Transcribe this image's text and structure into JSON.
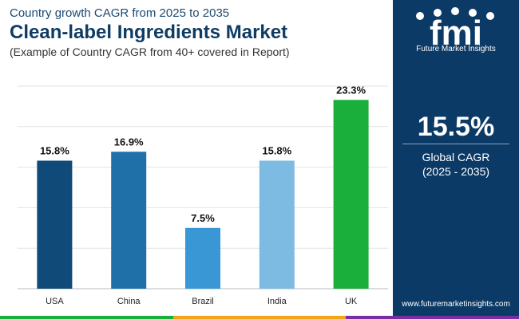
{
  "header": {
    "subtitle_top": "Country growth CAGR from 2025 to 2035",
    "title": "Clean-label Ingredients Market",
    "subtitle_bottom": "(Example of Country CAGR from 40+ covered in Report)"
  },
  "chart_data": {
    "type": "bar",
    "categories": [
      "USA",
      "China",
      "Brazil",
      "India",
      "UK"
    ],
    "values": [
      15.8,
      16.9,
      7.5,
      15.8,
      23.3
    ],
    "value_labels": [
      "15.8%",
      "16.9%",
      "7.5%",
      "15.8%",
      "23.3%"
    ],
    "ylim": [
      0,
      25
    ],
    "grid": true,
    "colors": [
      "#0f4a78",
      "#1f6fa8",
      "#3a97d6",
      "#7dbbe3",
      "#1aae3a"
    ]
  },
  "panel": {
    "brand": "Future Market Insights",
    "kpi_value": "15.5%",
    "kpi_label_line1": "Global CAGR",
    "kpi_label_line2": "(2025 - 2035)",
    "website": "www.futuremarketinsights.com"
  },
  "colors": {
    "panel_bg": "#0c3a66",
    "strip": [
      "#1aae3a",
      "#f2a51a",
      "#7a2fa0"
    ]
  },
  "icons": [
    "fmi-logo"
  ]
}
